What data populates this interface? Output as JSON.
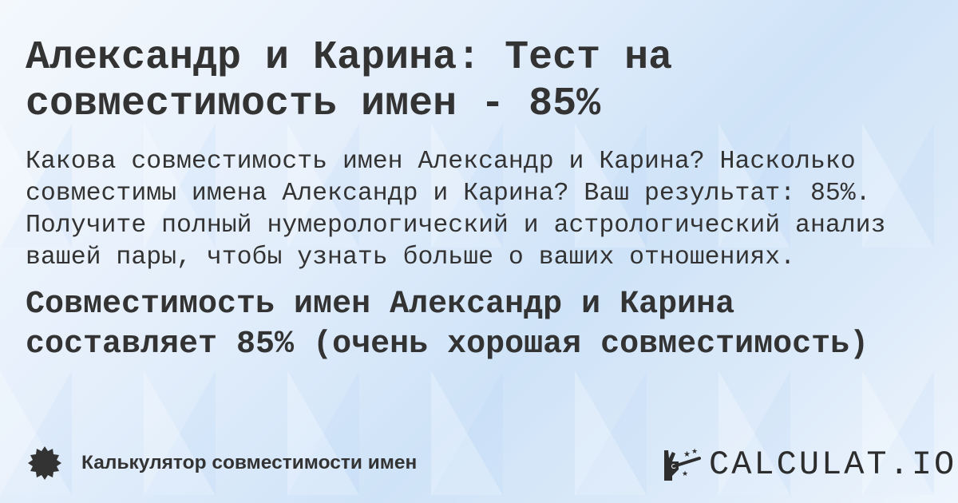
{
  "title": "Александр и Карина: Тест на совместимость имен - 85%",
  "description": "Какова совместимость имен Александр и Карина? Насколько совместимы имена Александр и Карина? Ваш результат: 85%. Получите полный нумерологический и астрологический анализ вашей пары, чтобы узнать больше о ваших отношениях.",
  "result": "Совместимость имен Александр и Карина составляет 85% (очень хорошая совместимость)",
  "footer": {
    "calculator_name": "Калькулятор совместимости имен",
    "icon": "badge-icon"
  },
  "logo": {
    "text": "CALCULAT.IO"
  }
}
